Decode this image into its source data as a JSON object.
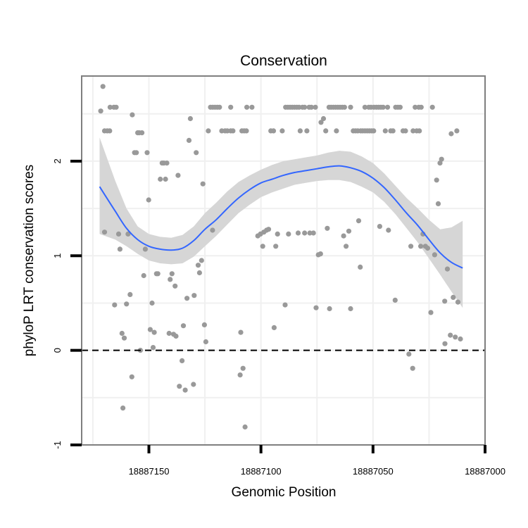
{
  "chart_data": {
    "type": "scatter",
    "title": "Conservation",
    "xlabel": "Genomic Position",
    "ylabel": "phyloP LRT conservation scores",
    "x_reversed": true,
    "xlim": [
      18887180,
      18887000
    ],
    "ylim": [
      -1,
      2.9
    ],
    "x_ticks": [
      18887150,
      18887100,
      18887050,
      18887000
    ],
    "x_tick_labels": [
      "18887150",
      "18887100",
      "18887050",
      "18887000"
    ],
    "y_ticks": [
      -1,
      0,
      1,
      2
    ],
    "y_tick_labels": [
      "-1",
      "0",
      "1",
      "2"
    ],
    "reference_line": {
      "y": 0,
      "style": "dashed",
      "color": "#000000"
    },
    "grid": true,
    "colors": {
      "points": "#999999",
      "smooth": "#3366ff",
      "band": "#d6d6d6",
      "panel_border": "#7f7f7f",
      "grid": "#f0f0f0"
    },
    "points": [
      [
        18887171.5,
        2.53
      ],
      [
        18887170.5,
        2.79
      ],
      [
        18887169.8,
        2.32
      ],
      [
        18887168.6,
        2.32
      ],
      [
        18887167.5,
        2.32
      ],
      [
        18887165.6,
        2.57
      ],
      [
        18887164.6,
        2.57
      ],
      [
        18887167.3,
        2.57
      ],
      [
        18887169.8,
        1.25
      ],
      [
        18887165.3,
        0.48
      ],
      [
        18887163.5,
        1.23
      ],
      [
        18887162.9,
        1.07
      ],
      [
        18887162.0,
        0.18
      ],
      [
        18887161.0,
        0.13
      ],
      [
        18887160.0,
        0.49
      ],
      [
        18887159.3,
        1.23
      ],
      [
        18887158.4,
        0.59
      ],
      [
        18887157.6,
        -0.28
      ],
      [
        18887161.6,
        -0.61
      ],
      [
        18887157.4,
        2.49
      ],
      [
        18887156.4,
        2.09
      ],
      [
        18887155.6,
        2.09
      ],
      [
        18887155.0,
        2.3
      ],
      [
        18887154.3,
        2.3
      ],
      [
        18887153.8,
        0.0
      ],
      [
        18887153.1,
        2.3
      ],
      [
        18887152.3,
        0.79
      ],
      [
        18887151.6,
        1.07
      ],
      [
        18887150.8,
        2.09
      ],
      [
        18887150.1,
        1.59
      ],
      [
        18887149.4,
        0.22
      ],
      [
        18887148.6,
        0.5
      ],
      [
        18887148.1,
        0.03
      ],
      [
        18887147.6,
        0.19
      ],
      [
        18887146.6,
        0.81
      ],
      [
        18887146.0,
        0.81
      ],
      [
        18887144.9,
        1.81
      ],
      [
        18887144.1,
        1.98
      ],
      [
        18887143.3,
        1.98
      ],
      [
        18887142.6,
        1.81
      ],
      [
        18887142.0,
        1.98
      ],
      [
        18887141.0,
        0.18
      ],
      [
        18887140.5,
        0.75
      ],
      [
        18887139.7,
        0.81
      ],
      [
        18887139.0,
        0.17
      ],
      [
        18887138.3,
        0.68
      ],
      [
        18887137.9,
        0.15
      ],
      [
        18887137.0,
        1.85
      ],
      [
        18887136.4,
        -0.38
      ],
      [
        18887135.2,
        -0.11
      ],
      [
        18887134.6,
        0.26
      ],
      [
        18887133.8,
        -0.42
      ],
      [
        18887133.0,
        0.55
      ],
      [
        18887132.1,
        2.22
      ],
      [
        18887131.5,
        2.45
      ],
      [
        18887130.1,
        -0.36
      ],
      [
        18887129.8,
        0.58
      ],
      [
        18887128.9,
        2.09
      ],
      [
        18887128.0,
        0.9
      ],
      [
        18887127.4,
        0.82
      ],
      [
        18887126.5,
        0.95
      ],
      [
        18887125.9,
        1.76
      ],
      [
        18887125.2,
        0.27
      ],
      [
        18887124.6,
        0.09
      ],
      [
        18887121.6,
        1.27
      ],
      [
        18887123.5,
        2.32
      ],
      [
        18887122.5,
        2.57
      ],
      [
        18887121.5,
        2.57
      ],
      [
        18887120.5,
        2.57
      ],
      [
        18887119.5,
        2.57
      ],
      [
        18887118.5,
        2.57
      ],
      [
        18887117.5,
        2.32
      ],
      [
        18887116.0,
        2.32
      ],
      [
        18887115.0,
        2.32
      ],
      [
        18887113.5,
        2.32
      ],
      [
        18887112.5,
        2.32
      ],
      [
        18887108.5,
        2.32
      ],
      [
        18887107.5,
        2.32
      ],
      [
        18887106.5,
        2.32
      ],
      [
        18887106.3,
        2.57
      ],
      [
        18887104.0,
        2.57
      ],
      [
        18887113.5,
        2.57
      ],
      [
        18887109.0,
        0.19
      ],
      [
        18887108.0,
        -0.19
      ],
      [
        18887109.3,
        -0.26
      ],
      [
        18887107.1,
        -0.81
      ],
      [
        18887101.4,
        1.21
      ],
      [
        18887100.2,
        1.23
      ],
      [
        18887099.2,
        1.1
      ],
      [
        18887098.7,
        1.25
      ],
      [
        18887097.5,
        1.27
      ],
      [
        18887096.6,
        1.28
      ],
      [
        18887095.6,
        2.32
      ],
      [
        18887094.4,
        2.32
      ],
      [
        18887094.1,
        0.24
      ],
      [
        18887093.4,
        1.1
      ],
      [
        18887092.6,
        1.23
      ],
      [
        18887089.2,
        0.48
      ],
      [
        18887090.5,
        2.32
      ],
      [
        18887089.0,
        2.57
      ],
      [
        18887088.0,
        2.57
      ],
      [
        18887087.0,
        2.57
      ],
      [
        18887086.0,
        2.57
      ],
      [
        18887085.0,
        2.57
      ],
      [
        18887084.0,
        2.57
      ],
      [
        18887083.0,
        2.57
      ],
      [
        18887082.5,
        2.32
      ],
      [
        18887081.5,
        2.57
      ],
      [
        18887080.5,
        2.57
      ],
      [
        18887079.5,
        2.32
      ],
      [
        18887078.5,
        2.57
      ],
      [
        18887077.5,
        2.57
      ],
      [
        18887087.7,
        1.23
      ],
      [
        18887083.4,
        1.24
      ],
      [
        18887080.5,
        1.24
      ],
      [
        18887078.2,
        1.24
      ],
      [
        18887076.6,
        1.24
      ],
      [
        18887075.7,
        2.57
      ],
      [
        18887075.4,
        0.45
      ],
      [
        18887074.4,
        1.01
      ],
      [
        18887073.4,
        1.02
      ],
      [
        18887073.2,
        2.41
      ],
      [
        18887072.1,
        2.45
      ],
      [
        18887071.1,
        2.32
      ],
      [
        18887070.4,
        1.29
      ],
      [
        18887069.6,
        2.57
      ],
      [
        18887068.7,
        2.57
      ],
      [
        18887067.7,
        2.57
      ],
      [
        18887066.7,
        2.57
      ],
      [
        18887065.7,
        2.57
      ],
      [
        18887064.7,
        2.57
      ],
      [
        18887063.7,
        2.57
      ],
      [
        18887062.7,
        2.57
      ],
      [
        18887069.4,
        0.44
      ],
      [
        18887066.3,
        2.32
      ],
      [
        18887063.1,
        1.21
      ],
      [
        18887062.0,
        1.1
      ],
      [
        18887060.8,
        1.26
      ],
      [
        18887060.0,
        0.44
      ],
      [
        18887060.0,
        2.57
      ],
      [
        18887058.8,
        2.32
      ],
      [
        18887057.8,
        2.32
      ],
      [
        18887056.8,
        2.32
      ],
      [
        18887056.4,
        1.37
      ],
      [
        18887055.7,
        0.88
      ],
      [
        18887055.5,
        2.32
      ],
      [
        18887054.6,
        2.32
      ],
      [
        18887053.6,
        2.57
      ],
      [
        18887053.6,
        2.32
      ],
      [
        18887052.6,
        2.32
      ],
      [
        18887051.9,
        2.57
      ],
      [
        18887051.6,
        2.32
      ],
      [
        18887050.9,
        2.57
      ],
      [
        18887050.6,
        2.32
      ],
      [
        18887049.7,
        2.32
      ],
      [
        18887049.6,
        2.57
      ],
      [
        18887048.5,
        2.57
      ],
      [
        18887047.5,
        2.57
      ],
      [
        18887046.5,
        2.57
      ],
      [
        18887045.5,
        2.57
      ],
      [
        18887047.0,
        1.31
      ],
      [
        18887043.1,
        1.27
      ],
      [
        18887044.5,
        2.32
      ],
      [
        18887043.5,
        2.57
      ],
      [
        18887042.1,
        2.32
      ],
      [
        18887041.1,
        2.32
      ],
      [
        18887040.1,
        0.53
      ],
      [
        18887039.9,
        2.57
      ],
      [
        18887038.9,
        2.57
      ],
      [
        18887037.9,
        2.57
      ],
      [
        18887036.6,
        2.32
      ],
      [
        18887035.5,
        2.32
      ],
      [
        18887034.0,
        -0.04
      ],
      [
        18887033.1,
        1.1
      ],
      [
        18887032.3,
        -0.19
      ],
      [
        18887032.1,
        2.32
      ],
      [
        18887031.2,
        2.57
      ],
      [
        18887030.5,
        2.32
      ],
      [
        18887029.6,
        2.57
      ],
      [
        18887028.5,
        2.57
      ],
      [
        18887029.3,
        2.32
      ],
      [
        18887028.7,
        1.1
      ],
      [
        18887027.7,
        1.23
      ],
      [
        18887026.6,
        1.1
      ],
      [
        18887025.6,
        1.08
      ],
      [
        18887024.2,
        0.4
      ],
      [
        18887023.5,
        2.57
      ],
      [
        18887022.5,
        1.01
      ],
      [
        18887021.6,
        1.8
      ],
      [
        18887020.9,
        1.55
      ],
      [
        18887020.1,
        1.98
      ],
      [
        18887019.4,
        2.02
      ],
      [
        18887018.0,
        0.52
      ],
      [
        18887017.9,
        0.07
      ],
      [
        18887016.8,
        0.86
      ],
      [
        18887015.5,
        0.16
      ],
      [
        18887015.1,
        2.29
      ],
      [
        18887014.2,
        0.56
      ],
      [
        18887013.3,
        0.14
      ],
      [
        18887012.6,
        2.32
      ],
      [
        18887012.1,
        0.51
      ],
      [
        18887011.0,
        0.12
      ]
    ],
    "smooth_line": {
      "x": [
        18887172,
        18887165,
        18887160,
        18887155,
        18887150,
        18887145,
        18887140,
        18887135,
        18887130,
        18887125,
        18887120,
        18887115,
        18887110,
        18887105,
        18887100,
        18887095,
        18887090,
        18887085,
        18887080,
        18887075,
        18887070,
        18887065,
        18887060,
        18887055,
        18887050,
        18887045,
        18887040,
        18887035,
        18887030,
        18887025,
        18887020,
        18887015,
        18887010
      ],
      "y": [
        1.73,
        1.47,
        1.29,
        1.17,
        1.1,
        1.07,
        1.06,
        1.08,
        1.16,
        1.28,
        1.38,
        1.5,
        1.61,
        1.7,
        1.77,
        1.81,
        1.85,
        1.88,
        1.9,
        1.92,
        1.94,
        1.95,
        1.93,
        1.89,
        1.82,
        1.72,
        1.59,
        1.45,
        1.32,
        1.17,
        1.03,
        0.93,
        0.87
      ],
      "lower": [
        1.23,
        1.17,
        1.1,
        1.02,
        0.95,
        0.92,
        0.91,
        0.92,
        0.99,
        1.1,
        1.21,
        1.33,
        1.45,
        1.54,
        1.62,
        1.67,
        1.71,
        1.75,
        1.77,
        1.79,
        1.8,
        1.8,
        1.78,
        1.73,
        1.67,
        1.57,
        1.44,
        1.29,
        1.14,
        0.97,
        0.8,
        0.62,
        0.45
      ],
      "upper": [
        2.25,
        1.79,
        1.5,
        1.31,
        1.23,
        1.2,
        1.19,
        1.22,
        1.31,
        1.45,
        1.56,
        1.68,
        1.78,
        1.85,
        1.91,
        1.96,
        2.0,
        2.02,
        2.04,
        2.06,
        2.09,
        2.11,
        2.1,
        2.05,
        1.98,
        1.87,
        1.74,
        1.61,
        1.5,
        1.38,
        1.28,
        1.3,
        1.37
      ]
    }
  }
}
